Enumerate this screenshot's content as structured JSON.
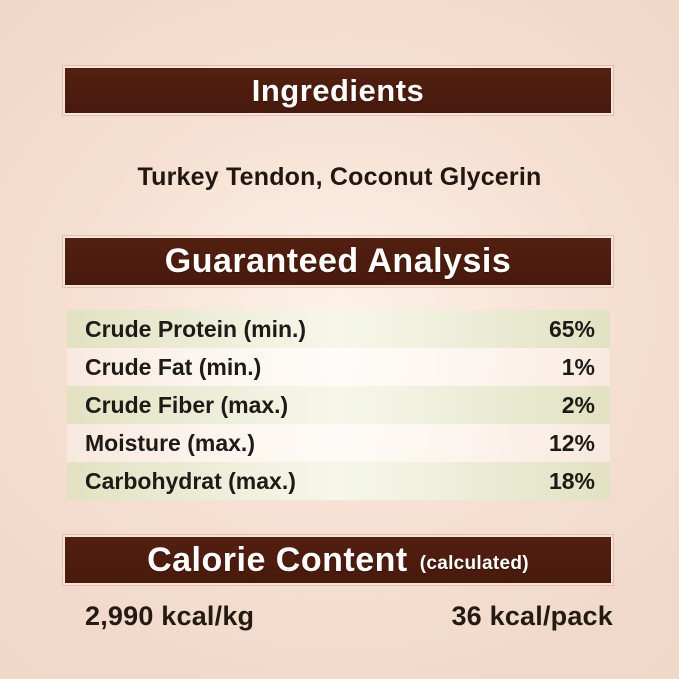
{
  "label": {
    "ingredients": {
      "header": "Ingredients",
      "content": "Turkey Tendon, Coconut Glycerin"
    },
    "guaranteed_analysis": {
      "header": "Guaranteed Analysis",
      "rows": [
        {
          "label": "Crude Protein (min.)",
          "value": "65%"
        },
        {
          "label": "Crude Fat (min.)",
          "value": "1%"
        },
        {
          "label": "Crude Fiber (max.)",
          "value": "2%"
        },
        {
          "label": "Moisture (max.)",
          "value": "12%"
        },
        {
          "label": "Carbohydrat (max.)",
          "value": "18%"
        }
      ]
    },
    "calorie_content": {
      "header": "Calorie Content",
      "header_note": "(calculated)",
      "per_kg": "2,990 kcal/kg",
      "per_pack": "36 kcal/pack"
    },
    "colors": {
      "header_bar": "#4d1c0e",
      "header_text": "#ffffff",
      "body_text": "#221710",
      "row_green": "#e9ead2",
      "row_light": "#fdfbf8",
      "paper_background": "#efd7c8"
    }
  }
}
